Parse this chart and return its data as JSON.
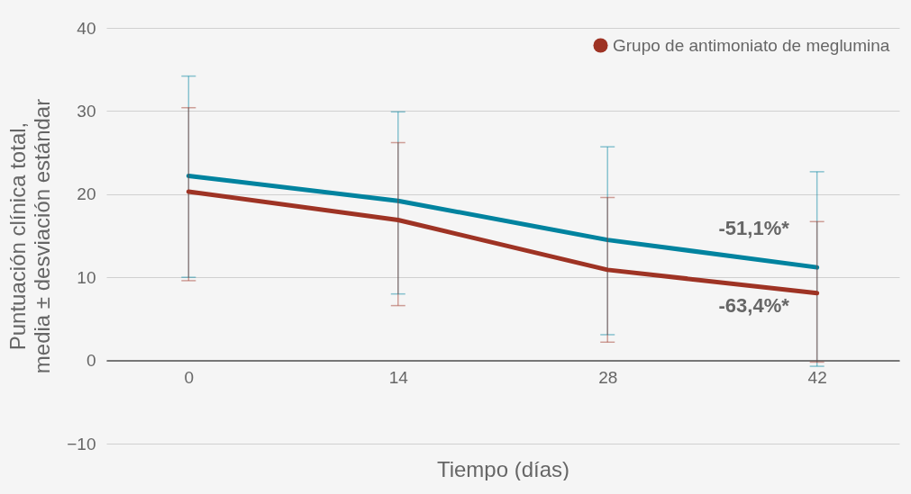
{
  "chart_data": {
    "type": "line",
    "xlabel": "Tiempo (días)",
    "ylabel": "Puntuación clínica total, media ± desviación estándar",
    "x": [
      0,
      14,
      28,
      42
    ],
    "xlim": [
      -5.5,
      47.5
    ],
    "xticks": [
      0,
      14,
      28,
      42
    ],
    "ylim": [
      -10,
      40
    ],
    "yticks": [
      -10,
      0,
      10,
      20,
      30,
      40
    ],
    "grid": "y",
    "legend": "top right",
    "marker": "none",
    "line_style": "solid",
    "series": [
      {
        "color": "#00839f",
        "values": [
          22.2,
          19.2,
          14.5,
          11.2
        ],
        "errors": [
          [
            10.0,
            34.2
          ],
          [
            8.0,
            29.9
          ],
          [
            3.1,
            25.7
          ],
          [
            -0.7,
            22.7
          ]
        ]
      },
      {
        "name": "Grupo de antimoniato de meglumina",
        "color": "#9e3324",
        "values": [
          20.3,
          16.9,
          10.9,
          8.1
        ],
        "errors": [
          [
            9.6,
            30.4
          ],
          [
            6.6,
            26.2
          ],
          [
            2.2,
            19.6
          ],
          [
            -0.2,
            16.7
          ]
        ]
      }
    ],
    "annotations": [
      "-51,1%*",
      "-63,4%*"
    ]
  }
}
